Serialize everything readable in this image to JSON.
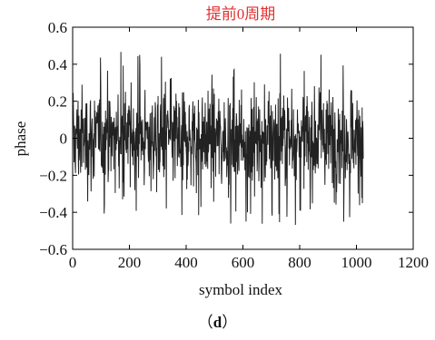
{
  "chart_data": {
    "type": "line",
    "title": "提前0周期",
    "xlabel": "symbol index",
    "ylabel": "phase",
    "xlim": [
      0,
      1200
    ],
    "ylim": [
      -0.6,
      0.6
    ],
    "x_ticks": [
      "0",
      "200",
      "400",
      "600",
      "800",
      "1000",
      "1200"
    ],
    "y_ticks": [
      "−0.6",
      "−0.4",
      "−0.2",
      "0",
      "0.2",
      "0.4",
      "0.6"
    ],
    "x_tick_values": [
      0,
      200,
      400,
      600,
      800,
      1000,
      1200
    ],
    "y_tick_values": [
      -0.6,
      -0.4,
      -0.2,
      0,
      0.2,
      0.4,
      0.6
    ],
    "series": [
      {
        "n_points": 1024,
        "x_start": 1,
        "x_end": 1024,
        "peak_min": -0.5,
        "peak_max": 0.49
      }
    ],
    "grid": false,
    "colors": {
      "line": "#222222",
      "title": "#e0312f",
      "axis": "#000000"
    }
  },
  "caption": {
    "open": "（",
    "label": "d",
    "close": "）"
  }
}
